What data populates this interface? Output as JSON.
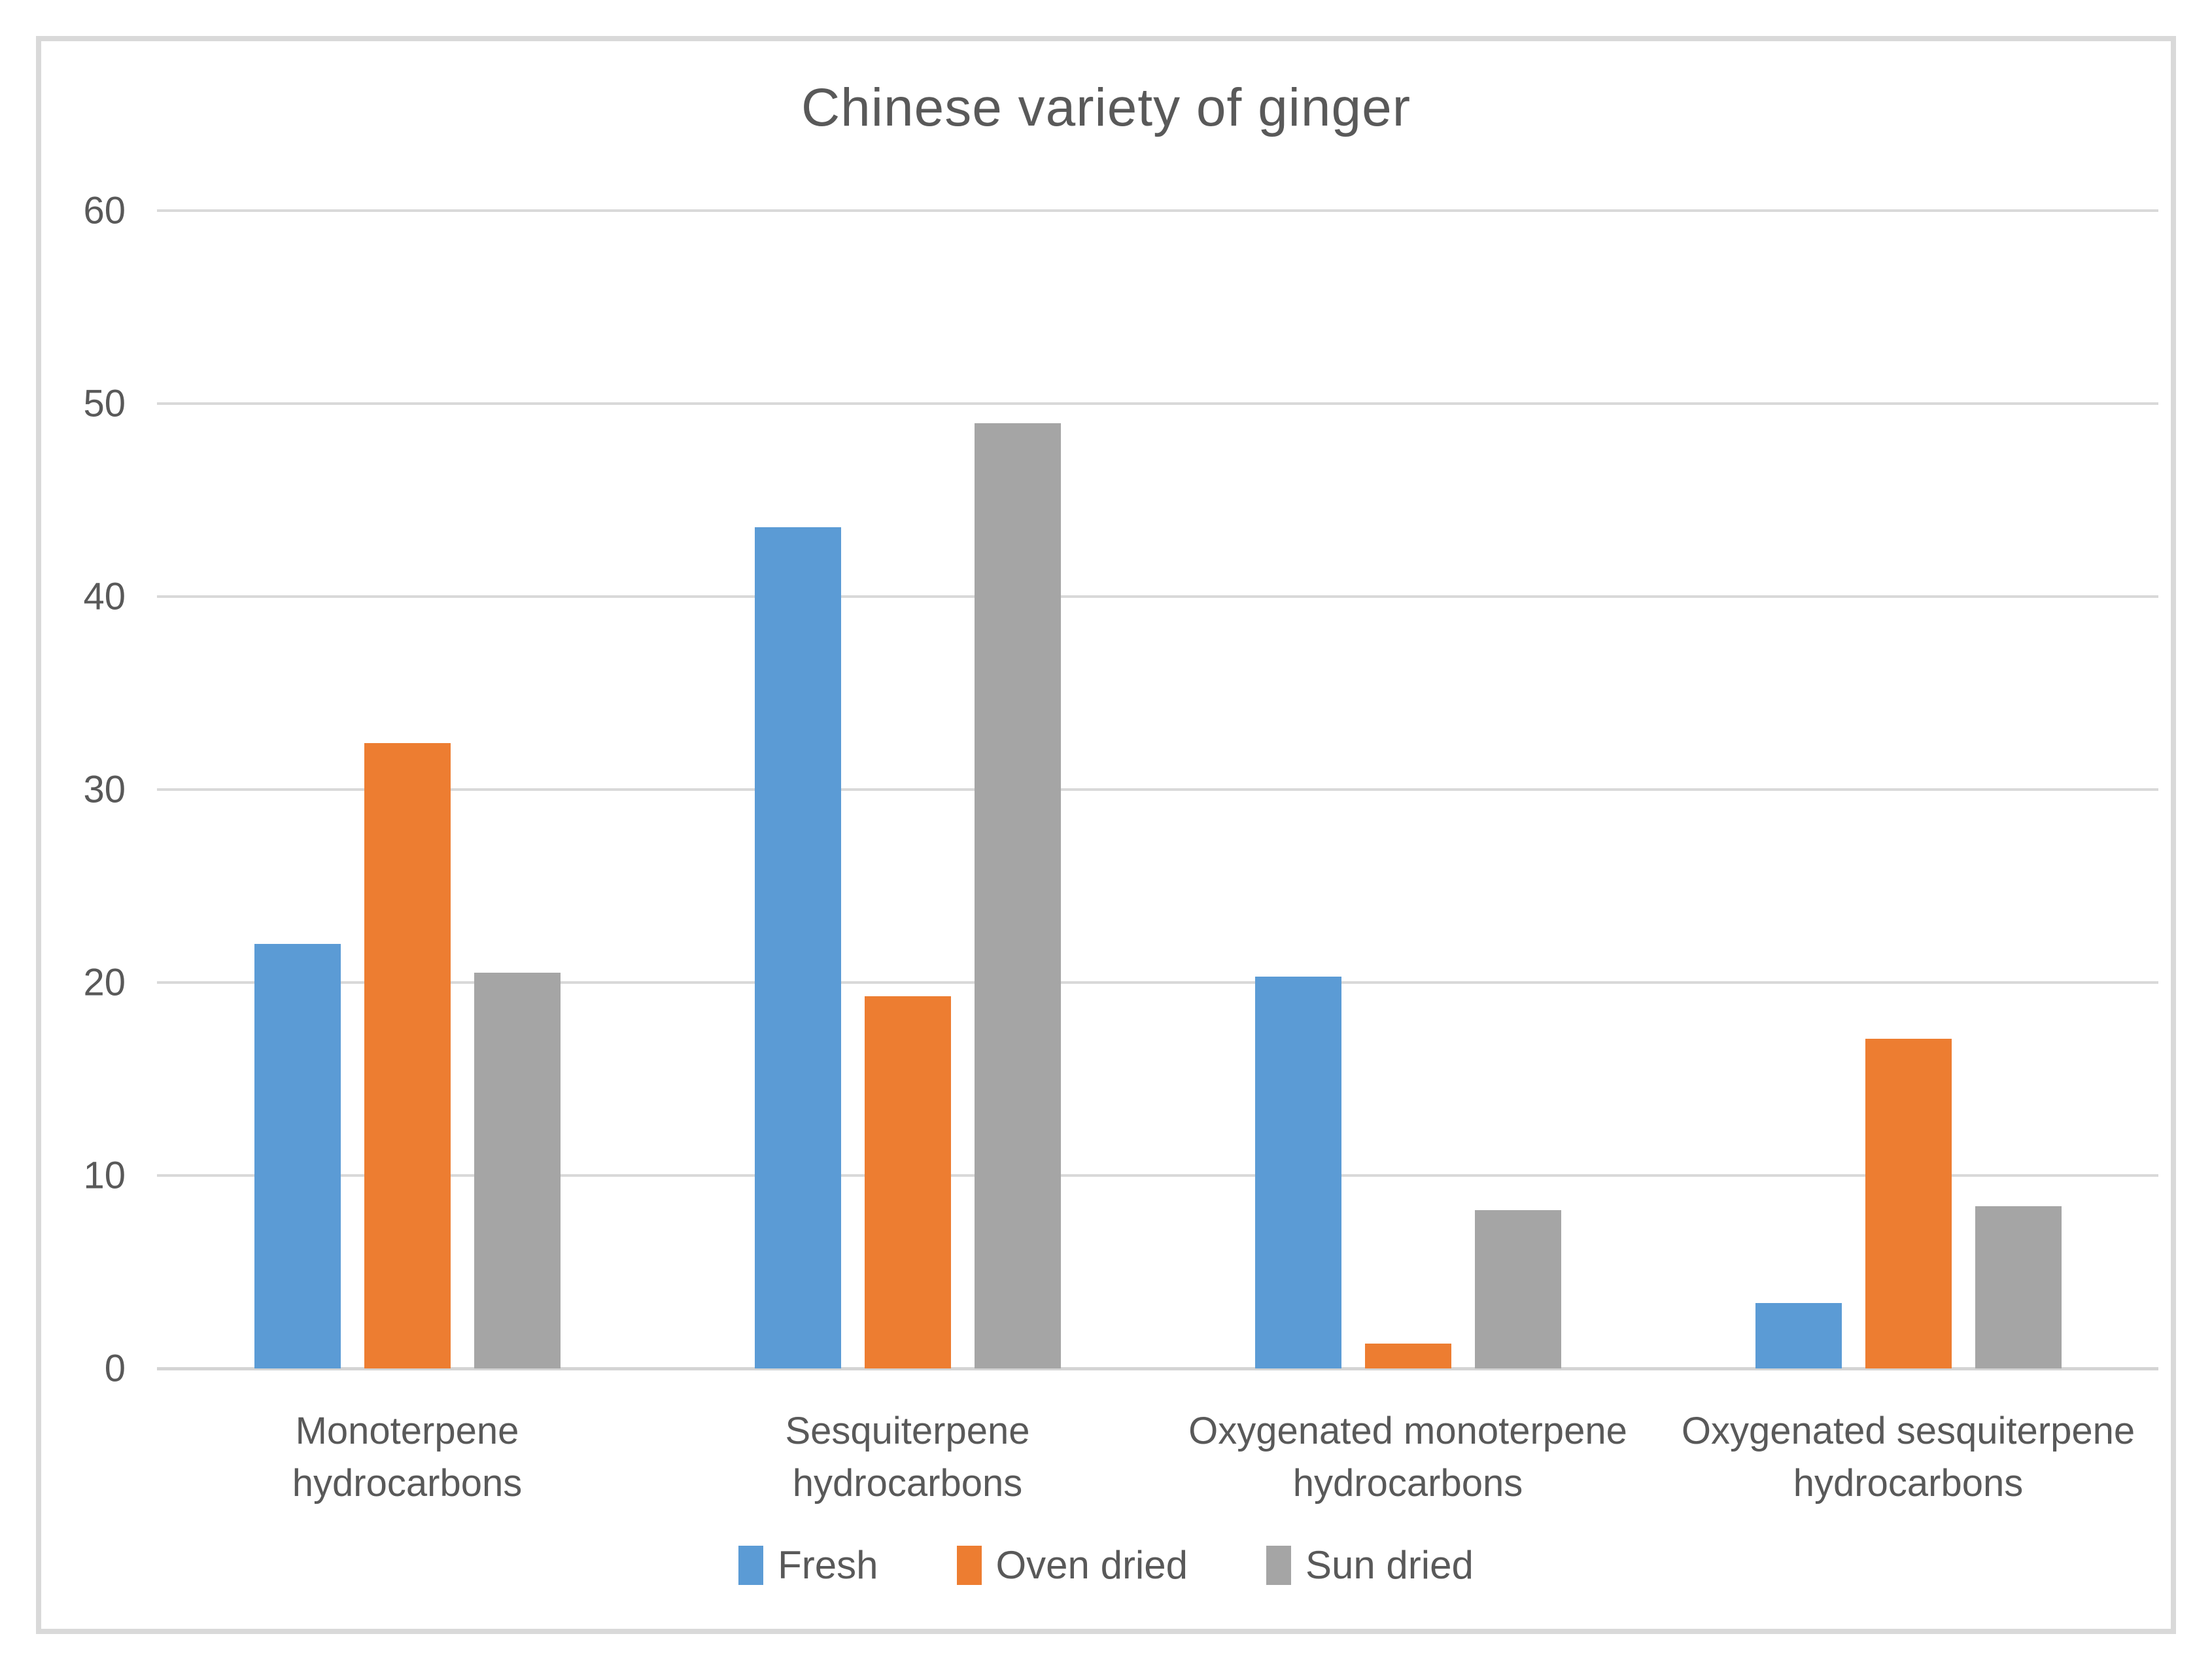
{
  "chart_data": {
    "type": "bar",
    "title": "Chinese variety of ginger",
    "categories": [
      {
        "label": "Monoterpene hydrocarbons",
        "lines": [
          "Monoterpene",
          "hydrocarbons"
        ]
      },
      {
        "label": "Sesquiterpene hydrocarbons",
        "lines": [
          "Sesquiterpene",
          "hydrocarbons"
        ]
      },
      {
        "label": "Oxygenated monoterpene hydrocarbons",
        "lines": [
          "Oxygenated monoterpene",
          "hydrocarbons"
        ]
      },
      {
        "label": "Oxygenated sesquiterpene hydrocarbons",
        "lines": [
          "Oxygenated sesquiterpene",
          "hydrocarbons"
        ]
      }
    ],
    "series": [
      {
        "name": "Fresh",
        "color": "#5B9BD5",
        "values": [
          22.0,
          43.6,
          20.3,
          3.4
        ]
      },
      {
        "name": "Oven dried",
        "color": "#ED7D31",
        "values": [
          32.4,
          19.3,
          1.3,
          17.1
        ]
      },
      {
        "name": "Sun dried",
        "color": "#A5A5A5",
        "values": [
          20.5,
          49.0,
          8.2,
          8.4
        ]
      }
    ],
    "xlabel": "",
    "ylabel": "",
    "ylim": [
      0,
      60
    ],
    "yticks": [
      0,
      10,
      20,
      30,
      40,
      50,
      60
    ],
    "grid": "horizontal",
    "legend_position": "bottom",
    "colors": {
      "text": "#595959",
      "gridline": "#D9D9D9",
      "frame_border": "#D9D9D9",
      "background": "#FFFFFF"
    }
  }
}
